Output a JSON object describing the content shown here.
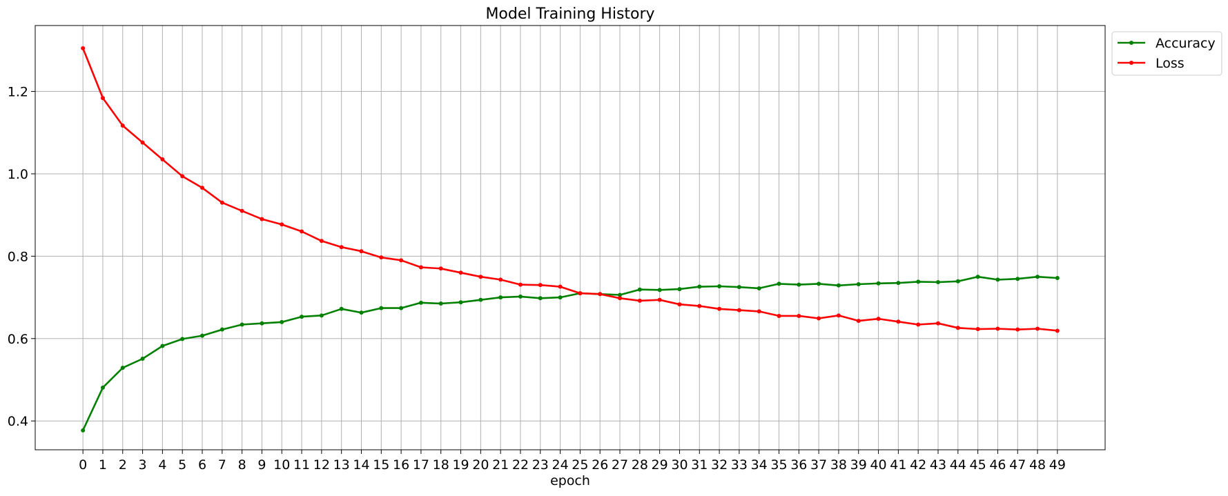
{
  "chart_data": {
    "type": "line",
    "title": "Model Training History",
    "xlabel": "epoch",
    "ylabel": "",
    "xlim": [
      -2.4,
      51.4
    ],
    "ylim": [
      0.33,
      1.36
    ],
    "x": [
      0,
      1,
      2,
      3,
      4,
      5,
      6,
      7,
      8,
      9,
      10,
      11,
      12,
      13,
      14,
      15,
      16,
      17,
      18,
      19,
      20,
      21,
      22,
      23,
      24,
      25,
      26,
      27,
      28,
      29,
      30,
      31,
      32,
      33,
      34,
      35,
      36,
      37,
      38,
      39,
      40,
      41,
      42,
      43,
      44,
      45,
      46,
      47,
      48,
      49
    ],
    "x_ticks": [
      "0",
      "1",
      "2",
      "3",
      "4",
      "5",
      "6",
      "7",
      "8",
      "9",
      "10",
      "11",
      "12",
      "13",
      "14",
      "15",
      "16",
      "17",
      "18",
      "19",
      "20",
      "21",
      "22",
      "23",
      "24",
      "25",
      "26",
      "27",
      "28",
      "29",
      "30",
      "31",
      "32",
      "33",
      "34",
      "35",
      "36",
      "37",
      "38",
      "39",
      "40",
      "41",
      "42",
      "43",
      "44",
      "45",
      "46",
      "47",
      "48",
      "49"
    ],
    "y_ticks": [
      0.4,
      0.6,
      0.8,
      1.0,
      1.2
    ],
    "y_tick_labels": [
      "0.4",
      "0.6",
      "0.8",
      "1.0",
      "1.2"
    ],
    "grid": true,
    "legend_position": "outside-top-right",
    "series": [
      {
        "name": "Accuracy",
        "color": "#008000",
        "values": [
          0.377,
          0.481,
          0.529,
          0.551,
          0.582,
          0.599,
          0.607,
          0.622,
          0.634,
          0.637,
          0.64,
          0.653,
          0.656,
          0.672,
          0.663,
          0.674,
          0.674,
          0.687,
          0.685,
          0.688,
          0.694,
          0.7,
          0.702,
          0.698,
          0.7,
          0.71,
          0.708,
          0.706,
          0.719,
          0.718,
          0.72,
          0.726,
          0.727,
          0.725,
          0.722,
          0.733,
          0.731,
          0.733,
          0.729,
          0.732,
          0.734,
          0.735,
          0.738,
          0.737,
          0.739,
          0.75,
          0.743,
          0.745,
          0.75,
          0.747
        ]
      },
      {
        "name": "Loss",
        "color": "#ff0000",
        "values": [
          1.305,
          1.184,
          1.117,
          1.076,
          1.035,
          0.994,
          0.966,
          0.93,
          0.91,
          0.89,
          0.877,
          0.86,
          0.837,
          0.822,
          0.812,
          0.797,
          0.79,
          0.773,
          0.77,
          0.76,
          0.75,
          0.743,
          0.731,
          0.73,
          0.726,
          0.71,
          0.708,
          0.698,
          0.692,
          0.694,
          0.683,
          0.679,
          0.672,
          0.669,
          0.666,
          0.655,
          0.655,
          0.649,
          0.656,
          0.643,
          0.648,
          0.641,
          0.634,
          0.637,
          0.626,
          0.623,
          0.624,
          0.622,
          0.624,
          0.619
        ]
      }
    ]
  }
}
